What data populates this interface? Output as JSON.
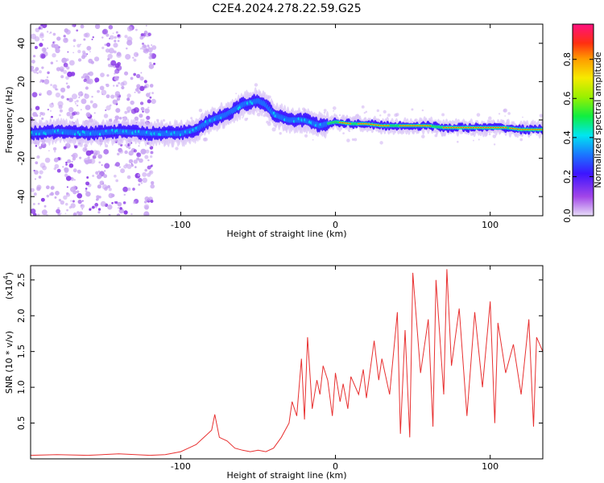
{
  "title": "C2E4.2024.278.22.59.G25",
  "chart_data": [
    {
      "type": "heatmap",
      "xlabel": "Height of straight line (km)",
      "ylabel": "Frequency (Hz)",
      "xlim": [
        -197,
        134
      ],
      "ylim": [
        -50,
        50
      ],
      "xticks": [
        -100,
        0,
        100
      ],
      "yticks": [
        -40,
        -20,
        0,
        20,
        40
      ],
      "ytick_labels": [
        "-40",
        "-20",
        "0",
        "20",
        "40"
      ],
      "xtick_labels": [
        "-100",
        "0",
        "100"
      ],
      "ridge": {
        "x": [
          -197,
          -180,
          -160,
          -140,
          -120,
          -100,
          -90,
          -80,
          -70,
          -60,
          -50,
          -45,
          -40,
          -30,
          -20,
          -10,
          0,
          10,
          20,
          30,
          40,
          50,
          60,
          70,
          80,
          90,
          100,
          110,
          120,
          134
        ],
        "y": [
          -7,
          -6,
          -7,
          -6,
          -7,
          -7,
          -5,
          0,
          3,
          8,
          10,
          8,
          3,
          0,
          0,
          -3,
          -1,
          -2,
          -2,
          -3,
          -3,
          -3,
          -3,
          -4,
          -4,
          -4,
          -4,
          -4,
          -5,
          -5
        ]
      },
      "colorbar": {
        "label": "Normalized spectral amplitude",
        "range": [
          0.0,
          0.98
        ],
        "ticks": [
          0.0,
          0.2,
          0.4,
          0.6,
          0.8
        ],
        "tick_labels": [
          "0.0",
          "0.2",
          "0.4",
          "0.6",
          "0.8"
        ]
      }
    },
    {
      "type": "line",
      "xlabel": "Height of straight line (km)",
      "ylabel": "SNR (10 * v/v)",
      "multiplier": "(x10",
      "multiplier_exp": "4",
      "multiplier_close": ")",
      "xlim": [
        -197,
        134
      ],
      "ylim": [
        0,
        2.7
      ],
      "xticks": [
        -100,
        0,
        100
      ],
      "xtick_labels": [
        "-100",
        "0",
        "100"
      ],
      "yticks": [
        0.5,
        1.0,
        1.5,
        2.0,
        2.5
      ],
      "ytick_labels": [
        "0.5",
        "1.0",
        "1.5",
        "2.0",
        "2.5"
      ],
      "color": "#e83030",
      "series": [
        {
          "x": [
            -197,
            -180,
            -160,
            -140,
            -120,
            -110,
            -100,
            -95,
            -90,
            -85,
            -80,
            -78,
            -75,
            -70,
            -65,
            -60,
            -55,
            -50,
            -45,
            -40,
            -35,
            -30,
            -28,
            -25,
            -22,
            -20,
            -18,
            -15,
            -12,
            -10,
            -8,
            -5,
            -2,
            0,
            3,
            5,
            8,
            10,
            15,
            18,
            20,
            25,
            28,
            30,
            35,
            40,
            42,
            45,
            48,
            50,
            55,
            60,
            63,
            65,
            70,
            72,
            75,
            80,
            85,
            90,
            95,
            100,
            103,
            105,
            110,
            115,
            120,
            125,
            128,
            130,
            134
          ],
          "y": [
            0.05,
            0.06,
            0.05,
            0.07,
            0.05,
            0.06,
            0.1,
            0.15,
            0.2,
            0.3,
            0.4,
            0.62,
            0.3,
            0.25,
            0.15,
            0.12,
            0.1,
            0.12,
            0.1,
            0.15,
            0.3,
            0.5,
            0.8,
            0.6,
            1.4,
            0.55,
            1.7,
            0.7,
            1.1,
            0.9,
            1.3,
            1.1,
            0.6,
            1.2,
            0.8,
            1.05,
            0.7,
            1.15,
            0.9,
            1.25,
            0.85,
            1.65,
            1.1,
            1.4,
            0.9,
            2.05,
            0.35,
            1.8,
            0.3,
            2.6,
            1.2,
            1.95,
            0.45,
            2.5,
            0.9,
            2.65,
            1.3,
            2.1,
            0.6,
            2.05,
            1.0,
            2.2,
            0.5,
            1.9,
            1.2,
            1.6,
            0.9,
            1.95,
            0.45,
            1.7,
            1.5
          ]
        }
      ]
    }
  ]
}
